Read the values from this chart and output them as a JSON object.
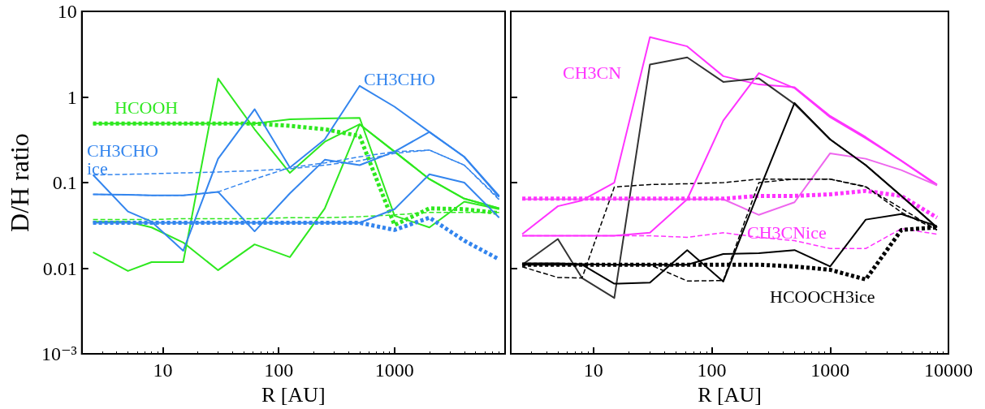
{
  "chart_data": [
    {
      "type": "line",
      "ylabel": "D/H ratio",
      "xlabel": "R [AU]",
      "log": "xy",
      "xlim": [
        2,
        9000
      ],
      "ylim": [
        0.001,
        10
      ],
      "xticks": [
        10,
        100,
        1000
      ],
      "yticks": [
        {
          "value": 0.001,
          "label": "10⁻³"
        },
        0.01,
        0.1,
        1,
        10
      ],
      "x": [
        2.5,
        5,
        8,
        15,
        30,
        62,
        125,
        250,
        500,
        1000,
        2000,
        4000,
        8000
      ],
      "series": [
        {
          "color": "#2ee81f",
          "line_style": "solid",
          "values": [
            0.49,
            0.49,
            0.49,
            0.49,
            0.49,
            0.49,
            0.55,
            0.56,
            0.57,
            0.041,
            0.03,
            0.06,
            0.049
          ]
        },
        {
          "color": "#2ee81f",
          "line_style": "dotted",
          "values": [
            0.49,
            0.49,
            0.49,
            0.49,
            0.49,
            0.49,
            0.46,
            0.42,
            0.35,
            0.032,
            0.05,
            0.049,
            0.044
          ]
        },
        {
          "color": "#2ee81f",
          "line_style": "solid",
          "values": [
            0.035,
            0.035,
            0.03,
            0.02,
            0.0095,
            0.019,
            0.0135,
            0.05,
            0.48,
            0.23,
            0.11,
            0.065,
            0.05
          ]
        },
        {
          "color": "#2ee81f",
          "line_style": "solid",
          "values": [
            0.0154,
            0.0093,
            0.0118,
            0.0118,
            1.64,
            0.42,
            0.13,
            0.3,
            0.48,
            0.23,
            0.11,
            0.065,
            0.05
          ]
        },
        {
          "color": "#2ee81f",
          "line_style": "dashed",
          "values": [
            0.037,
            0.037,
            0.037,
            0.038,
            0.038,
            0.038,
            0.039,
            0.039,
            0.04,
            0.042,
            0.045,
            0.045,
            0.045
          ]
        },
        {
          "color": "#3385ee",
          "line_style": "solid",
          "values": [
            0.034,
            0.034,
            0.034,
            0.034,
            0.034,
            0.034,
            0.034,
            0.034,
            0.034,
            0.049,
            0.125,
            0.1,
            0.039
          ]
        },
        {
          "color": "#3385ee",
          "line_style": "dotted",
          "values": [
            0.034,
            0.034,
            0.034,
            0.034,
            0.034,
            0.034,
            0.034,
            0.034,
            0.034,
            0.028,
            0.039,
            0.021,
            0.0127
          ]
        },
        {
          "color": "#3385ee",
          "line_style": "solid",
          "values": [
            0.073,
            0.072,
            0.071,
            0.071,
            0.078,
            0.027,
            0.075,
            0.185,
            0.16,
            0.23,
            0.39,
            0.2,
            0.068
          ]
        },
        {
          "color": "#3385ee",
          "line_style": "dashed",
          "values": [
            0.073,
            0.072,
            0.071,
            0.071,
            0.078,
            0.11,
            0.15,
            0.17,
            0.2,
            0.23,
            0.24,
            0.16,
            0.063
          ]
        },
        {
          "color": "#3385ee",
          "line_style": "solid",
          "values": [
            0.123,
            0.046,
            0.035,
            0.016,
            0.19,
            0.72,
            0.15,
            0.32,
            1.35,
            0.77,
            0.39,
            0.2,
            0.07
          ]
        },
        {
          "color": "#3385ee",
          "line_style": "dashed",
          "values": [
            0.123,
            0.125,
            0.127,
            0.13,
            0.133,
            0.138,
            0.145,
            0.16,
            0.18,
            0.22,
            0.24,
            0.16,
            0.065
          ]
        }
      ],
      "annotations": [
        "HCOOH",
        "CH3CHO",
        "CH3CHO\nice"
      ]
    },
    {
      "type": "line",
      "xlabel": "R [AU]",
      "log": "xy",
      "xlim": [
        2,
        10000
      ],
      "ylim": [
        0.001,
        10
      ],
      "xticks": [
        10,
        100,
        1000,
        10000
      ],
      "yticks": [
        0.001,
        0.01,
        0.1,
        1,
        10
      ],
      "tick_labels": "x",
      "x": [
        2.5,
        5,
        8,
        15,
        30,
        62,
        125,
        250,
        500,
        1000,
        2000,
        4000,
        8000
      ],
      "series": [
        {
          "color": "#ff33ff",
          "line_style": "solid",
          "values": [
            0.025,
            0.053,
            0.062,
            0.1,
            5.0,
            3.9,
            1.75,
            1.4,
            1.3,
            0.6,
            0.34,
            0.18,
            0.093
          ]
        },
        {
          "color": "#333333",
          "line_style": "solid",
          "values": [
            0.011,
            0.022,
            0.0077,
            0.0045,
            2.4,
            2.9,
            1.5,
            1.65,
            0.83,
            0.32,
            0.16,
            0.07,
            0.03
          ]
        },
        {
          "color": "#000000",
          "line_style": "dashed",
          "values": [
            0.0104,
            0.0078,
            0.0077,
            0.089,
            0.095,
            0.097,
            0.1,
            0.11,
            0.11,
            0.11,
            0.089,
            0.05,
            0.028
          ]
        },
        {
          "color": "#ff33ff",
          "line_style": "solid",
          "values": [
            0.024,
            0.024,
            0.024,
            0.024,
            0.026,
            0.064,
            0.53,
            1.9,
            1.27,
            0.58,
            0.33,
            0.18,
            0.095
          ]
        },
        {
          "color": "#ee66ee",
          "line_style": "solid",
          "values": [
            0.064,
            0.064,
            0.064,
            0.064,
            0.064,
            0.064,
            0.064,
            0.042,
            0.059,
            0.22,
            0.19,
            0.14,
            0.093
          ]
        },
        {
          "color": "#ff33ff",
          "line_style": "dotted",
          "values": [
            0.065,
            0.065,
            0.065,
            0.065,
            0.065,
            0.065,
            0.065,
            0.07,
            0.07,
            0.073,
            0.08,
            0.07,
            0.039
          ]
        },
        {
          "color": "#ff33ff",
          "line_style": "dashed",
          "values": [
            0.024,
            0.024,
            0.024,
            0.024,
            0.024,
            0.023,
            0.026,
            0.023,
            0.021,
            0.017,
            0.017,
            0.029,
            0.025
          ]
        },
        {
          "color": "#000000",
          "line_style": "solid",
          "values": [
            0.0114,
            0.0114,
            0.0112,
            0.011,
            0.011,
            0.011,
            0.0147,
            0.015,
            0.0163,
            0.0105,
            0.037,
            0.043,
            0.031
          ]
        },
        {
          "color": "#000000",
          "line_style": "dotted",
          "values": [
            0.011,
            0.011,
            0.011,
            0.011,
            0.011,
            0.011,
            0.011,
            0.011,
            0.0105,
            0.0096,
            0.0074,
            0.028,
            0.03
          ]
        },
        {
          "color": "#000000",
          "line_style": "solid",
          "values": [
            0.011,
            0.011,
            0.011,
            0.0066,
            0.0068,
            0.0163,
            0.007,
            0.08,
            0.85,
            0.32,
            0.16,
            0.07,
            0.03
          ]
        },
        {
          "color": "#000000",
          "line_style": "dashed",
          "values": [
            0.011,
            0.011,
            0.011,
            0.011,
            0.011,
            0.0071,
            0.0072,
            0.1,
            0.11,
            0.11,
            0.09,
            0.045,
            0.028
          ]
        }
      ],
      "annotations": [
        "CH3CN",
        "CH3CNice",
        "HCOOCH3ice"
      ]
    }
  ]
}
